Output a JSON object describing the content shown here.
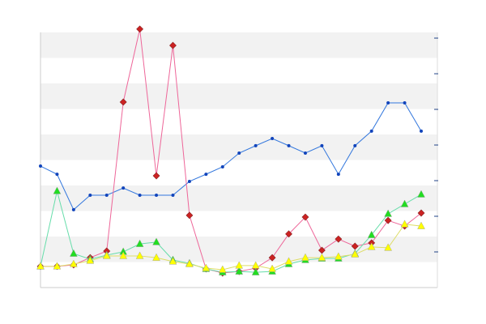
{
  "chart_data": {
    "type": "line",
    "categories": [
      null,
      null,
      null,
      null,
      null,
      null,
      null,
      null,
      null,
      null,
      null,
      null,
      null,
      null,
      null,
      null,
      null,
      null,
      null,
      null,
      null,
      null,
      null,
      null
    ],
    "ylim": [
      0,
      10
    ],
    "yticks": [
      0,
      1,
      2,
      3,
      4,
      5,
      6,
      7,
      8,
      9,
      10
    ],
    "grid": true,
    "grid_style": "bands",
    "band_color": "#f2f2f2",
    "y2lim": [
      0,
      7.16
    ],
    "y2ticks": [
      1,
      2,
      3,
      4,
      5,
      6,
      7
    ],
    "series": [
      {
        "color": "#3377dd",
        "marker_color": "#1144bb",
        "marker": "circle",
        "values": [
          4.76,
          4.44,
          3.05,
          3.62,
          3.62,
          3.9,
          3.62,
          3.62,
          3.62,
          4.16,
          4.44,
          4.73,
          5.27,
          5.56,
          5.84,
          5.56,
          5.27,
          5.56,
          4.44,
          5.56,
          6.13,
          7.24,
          7.24,
          6.13
        ]
      },
      {
        "color": "#ee6699",
        "marker_color": "#cc2222",
        "marker": "diamond",
        "values": [
          0.83,
          0.83,
          0.89,
          1.17,
          1.43,
          7.27,
          10.13,
          4.38,
          9.49,
          2.83,
          0.73,
          0.57,
          0.63,
          0.76,
          1.17,
          2.1,
          2.76,
          1.46,
          1.9,
          1.62,
          1.75,
          2.63,
          2.41,
          2.92
        ]
      },
      {
        "color": "#66ddaa",
        "marker_color": "#22dd22",
        "marker": "triangle",
        "values": [
          0.83,
          3.78,
          1.33,
          1.11,
          1.27,
          1.4,
          1.71,
          1.78,
          1.08,
          0.95,
          0.73,
          0.6,
          0.63,
          0.6,
          0.63,
          0.92,
          1.08,
          1.14,
          1.14,
          1.33,
          2.06,
          2.89,
          3.27,
          3.65
        ]
      },
      {
        "color": "#dddd66",
        "marker_color": "#ffff00",
        "marker": "triangle",
        "values": [
          0.83,
          0.83,
          0.92,
          1.05,
          1.24,
          1.24,
          1.24,
          1.17,
          1.02,
          0.92,
          0.76,
          0.7,
          0.86,
          0.86,
          0.73,
          1.02,
          1.17,
          1.17,
          1.21,
          1.3,
          1.59,
          1.56,
          2.48,
          2.41
        ]
      }
    ]
  }
}
